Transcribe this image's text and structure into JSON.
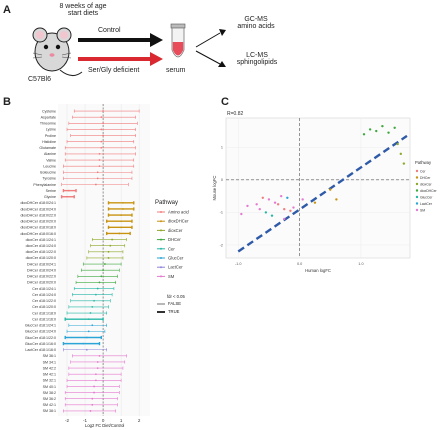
{
  "panelA": {
    "label": "A",
    "age_line1": "8 weeks of age",
    "age_line2": "start diets",
    "strain": "C57Bl6",
    "arm_control": "Control",
    "arm_deficient": "Ser/Gly deficient",
    "sample": "serum",
    "out1_line1": "GC-MS",
    "out1_line2": "amino acids",
    "out2_line1": "LC-MS",
    "out2_line2": "sphingolipids",
    "colors": {
      "control_arrow": "#111111",
      "deficient_arrow": "#d9282f"
    }
  },
  "panelB": {
    "label": "B",
    "xlabel": "Log2 FC Diet/Control",
    "xticks": [
      "-2",
      "-1",
      "0",
      "1",
      "2"
    ],
    "legend_title": "Pathway",
    "pathways": [
      {
        "name": "Amino acid",
        "color": "#f07c7c"
      },
      {
        "name": "dioxDHCer",
        "color": "#c89310"
      },
      {
        "name": "dioxCer",
        "color": "#8ea82a"
      },
      {
        "name": "DHCer",
        "color": "#3fa83f"
      },
      {
        "name": "Cer",
        "color": "#25b7a6"
      },
      {
        "name": "GlucCer",
        "color": "#2aa5d6"
      },
      {
        "name": "LactCer",
        "color": "#8d86d9"
      },
      {
        "name": "SM",
        "color": "#e57ad0"
      }
    ],
    "fdr_title": "fdr < 0.05",
    "fdr_items": [
      "FALSE",
      "TRUE"
    ]
  },
  "chart_data": [
    {
      "type": "scatter",
      "panel": "B",
      "xlabel": "Log2 FC Diet/Control",
      "xlim": [
        -2.5,
        2.6
      ],
      "xticks": [
        -2,
        -1,
        0,
        1,
        2
      ],
      "rows": [
        {
          "label": "Cysteine",
          "pathway": "Amino acid",
          "est": 0.0,
          "lo": -1.6,
          "hi": 2.0,
          "sig": false
        },
        {
          "label": "Aspartate",
          "pathway": "Amino acid",
          "est": -0.1,
          "lo": -1.7,
          "hi": 1.8,
          "sig": false
        },
        {
          "label": "Threonine",
          "pathway": "Amino acid",
          "est": 0.0,
          "lo": -1.9,
          "hi": 1.9,
          "sig": false
        },
        {
          "label": "Lysine",
          "pathway": "Amino acid",
          "est": -0.1,
          "lo": -2.0,
          "hi": 1.8,
          "sig": false
        },
        {
          "label": "Proline",
          "pathway": "Amino acid",
          "est": 0.0,
          "lo": -1.8,
          "hi": 1.8,
          "sig": false
        },
        {
          "label": "Histidine",
          "pathway": "Amino acid",
          "est": -0.1,
          "lo": -2.0,
          "hi": 1.7,
          "sig": false
        },
        {
          "label": "Glutamate",
          "pathway": "Amino acid",
          "est": -0.1,
          "lo": -2.1,
          "hi": 1.8,
          "sig": false
        },
        {
          "label": "Alanine",
          "pathway": "Amino acid",
          "est": -0.2,
          "lo": -2.1,
          "hi": 1.8,
          "sig": false
        },
        {
          "label": "Valine",
          "pathway": "Amino acid",
          "est": -0.2,
          "lo": -2.1,
          "hi": 1.7,
          "sig": false
        },
        {
          "label": "Leucine",
          "pathway": "Amino acid",
          "est": -0.2,
          "lo": -2.2,
          "hi": 1.7,
          "sig": false
        },
        {
          "label": "Isoleucine",
          "pathway": "Amino acid",
          "est": -0.3,
          "lo": -2.2,
          "hi": 1.6,
          "sig": false
        },
        {
          "label": "Tyrosine",
          "pathway": "Amino acid",
          "est": -0.3,
          "lo": -2.2,
          "hi": 1.6,
          "sig": false
        },
        {
          "label": "Phenylalanine",
          "pathway": "Amino acid",
          "est": -0.4,
          "lo": -2.3,
          "hi": 1.4,
          "sig": false
        },
        {
          "label": "Serine",
          "pathway": "Amino acid",
          "est": -1.9,
          "lo": -2.2,
          "hi": -1.5,
          "sig": true
        },
        {
          "label": "Glycine",
          "pathway": "Amino acid",
          "est": -2.0,
          "lo": -2.3,
          "hi": -1.6,
          "sig": true
        },
        {
          "label": "dioxDHCer d18:0/24:1",
          "pathway": "dioxDHCer",
          "est": 1.1,
          "lo": 0.3,
          "hi": 1.7,
          "sig": true
        },
        {
          "label": "dioxDHCer d18:0/24:0",
          "pathway": "dioxDHCer",
          "est": 1.1,
          "lo": 0.3,
          "hi": 1.7,
          "sig": true
        },
        {
          "label": "dioxDHCer d18:0/22:0",
          "pathway": "dioxDHCer",
          "est": 1.0,
          "lo": 0.3,
          "hi": 1.6,
          "sig": true
        },
        {
          "label": "dioxDHCer d18:0/20:0",
          "pathway": "dioxDHCer",
          "est": 1.0,
          "lo": 0.2,
          "hi": 1.6,
          "sig": true
        },
        {
          "label": "dioxDHCer d18:0/18:0",
          "pathway": "dioxDHCer",
          "est": 1.0,
          "lo": 0.3,
          "hi": 1.6,
          "sig": true
        },
        {
          "label": "dioxDHCer d18:0/16:0",
          "pathway": "dioxDHCer",
          "est": 0.9,
          "lo": 0.2,
          "hi": 1.5,
          "sig": true
        },
        {
          "label": "dioxCer d18:1/24:1",
          "pathway": "dioxCer",
          "est": 0.5,
          "lo": -0.6,
          "hi": 1.3,
          "sig": false
        },
        {
          "label": "dioxCer d18:1/24:0",
          "pathway": "dioxCer",
          "est": 0.4,
          "lo": -0.7,
          "hi": 1.2,
          "sig": false
        },
        {
          "label": "dioxCer d18:1/22:0",
          "pathway": "dioxCer",
          "est": 0.3,
          "lo": -0.8,
          "hi": 1.1,
          "sig": false
        },
        {
          "label": "dioxCer d18:1/20:0",
          "pathway": "dioxCer",
          "est": 0.3,
          "lo": -0.9,
          "hi": 1.1,
          "sig": false
        },
        {
          "label": "DHCer d18:0/24:1",
          "pathway": "DHCer",
          "est": 0.1,
          "lo": -1.1,
          "hi": 1.0,
          "sig": false
        },
        {
          "label": "DHCer d18:0/24:0",
          "pathway": "DHCer",
          "est": 0.0,
          "lo": -1.2,
          "hi": 0.9,
          "sig": false
        },
        {
          "label": "DHCer d18:0/22:0",
          "pathway": "DHCer",
          "est": -0.1,
          "lo": -1.4,
          "hi": 0.8,
          "sig": false
        },
        {
          "label": "DHCer d18:0/20:0",
          "pathway": "DHCer",
          "est": -0.2,
          "lo": -1.5,
          "hi": 0.7,
          "sig": false
        },
        {
          "label": "Cer d18:1/24:1",
          "pathway": "Cer",
          "est": -0.3,
          "lo": -1.6,
          "hi": 0.6,
          "sig": false
        },
        {
          "label": "Cer d18:1/24:0",
          "pathway": "Cer",
          "est": -0.4,
          "lo": -1.7,
          "hi": 0.5,
          "sig": false
        },
        {
          "label": "Cer d18:1/22:0",
          "pathway": "Cer",
          "est": -0.5,
          "lo": -1.8,
          "hi": 0.4,
          "sig": false
        },
        {
          "label": "Cer d18:1/20:0",
          "pathway": "Cer",
          "est": -0.6,
          "lo": -1.9,
          "hi": 0.3,
          "sig": false
        },
        {
          "label": "Cer d18:1/18:0",
          "pathway": "Cer",
          "est": -0.7,
          "lo": -2.0,
          "hi": 0.2,
          "sig": false
        },
        {
          "label": "Cer d18:1/16:0",
          "pathway": "Cer",
          "est": -0.8,
          "lo": -2.1,
          "hi": 0.0,
          "sig": true
        },
        {
          "label": "GlucCer d18:1/24:1",
          "pathway": "GlucCer",
          "est": -0.6,
          "lo": -1.9,
          "hi": 0.2,
          "sig": false
        },
        {
          "label": "GlucCer d18:1/24:0",
          "pathway": "GlucCer",
          "est": -0.8,
          "lo": -2.0,
          "hi": 0.1,
          "sig": false
        },
        {
          "label": "GlucCer d18:1/22:0",
          "pathway": "GlucCer",
          "est": -0.9,
          "lo": -2.1,
          "hi": -0.1,
          "sig": true
        },
        {
          "label": "GlucCer d18:1/16:0",
          "pathway": "GlucCer",
          "est": -1.1,
          "lo": -2.2,
          "hi": -0.2,
          "sig": true
        },
        {
          "label": "LactCer d18:1/16:0",
          "pathway": "LactCer",
          "est": -0.9,
          "lo": -2.2,
          "hi": 0.2,
          "sig": false
        },
        {
          "label": "SM 36:1",
          "pathway": "SM",
          "est": -0.2,
          "lo": -1.7,
          "hi": 1.3,
          "sig": false
        },
        {
          "label": "SM 34:1",
          "pathway": "SM",
          "est": -0.3,
          "lo": -1.8,
          "hi": 1.2,
          "sig": false
        },
        {
          "label": "SM 42:2",
          "pathway": "SM",
          "est": -0.3,
          "lo": -1.9,
          "hi": 1.1,
          "sig": false
        },
        {
          "label": "SM 42:1",
          "pathway": "SM",
          "est": -0.4,
          "lo": -1.9,
          "hi": 1.0,
          "sig": false
        },
        {
          "label": "SM 32:1",
          "pathway": "SM",
          "est": -0.4,
          "lo": -2.0,
          "hi": 1.0,
          "sig": false
        },
        {
          "label": "SM 40:1",
          "pathway": "SM",
          "est": -0.5,
          "lo": -2.0,
          "hi": 0.9,
          "sig": false
        },
        {
          "label": "SM 38:2",
          "pathway": "SM",
          "est": -0.5,
          "lo": -2.1,
          "hi": 0.9,
          "sig": false
        },
        {
          "label": "SM 36:2",
          "pathway": "SM",
          "est": -0.6,
          "lo": -2.1,
          "hi": 0.8,
          "sig": false
        },
        {
          "label": "SM 42:1",
          "pathway": "SM",
          "est": -0.6,
          "lo": -2.1,
          "hi": 0.8,
          "sig": false
        },
        {
          "label": "SM 38:1",
          "pathway": "SM",
          "est": -0.7,
          "lo": -2.2,
          "hi": 0.7,
          "sig": false
        }
      ]
    },
    {
      "type": "scatter",
      "panel": "C",
      "annotation": "R=0.82",
      "xlabel": "Human logFC",
      "ylabel": "Mouse logFC",
      "xlim": [
        -1.2,
        1.8
      ],
      "ylim": [
        -2.4,
        1.9
      ],
      "xticks": [
        -1.0,
        0.0,
        1.0
      ],
      "yticks": [
        -2,
        -1,
        0,
        1
      ],
      "legend_title": "Pathway",
      "legend": [
        {
          "name": "Cer",
          "color": "#f07c7c"
        },
        {
          "name": "DHCer",
          "color": "#c89310"
        },
        {
          "name": "dioxCer",
          "color": "#8ea82a"
        },
        {
          "name": "dioxDHCer",
          "color": "#3fa83f"
        },
        {
          "name": "GlucCer",
          "color": "#25b7a6"
        },
        {
          "name": "LactCer",
          "color": "#2aa5d6"
        },
        {
          "name": "SM",
          "color": "#e57ad0"
        }
      ],
      "points": [
        {
          "x": 1.05,
          "y": 1.4,
          "pathway": "dioxDHCer"
        },
        {
          "x": 1.15,
          "y": 1.55,
          "pathway": "dioxDHCer"
        },
        {
          "x": 1.25,
          "y": 1.5,
          "pathway": "dioxDHCer"
        },
        {
          "x": 1.35,
          "y": 1.65,
          "pathway": "dioxDHCer"
        },
        {
          "x": 1.45,
          "y": 1.45,
          "pathway": "dioxDHCer"
        },
        {
          "x": 1.55,
          "y": 1.6,
          "pathway": "dioxDHCer"
        },
        {
          "x": 1.6,
          "y": 1.1,
          "pathway": "dioxCer"
        },
        {
          "x": 1.65,
          "y": 0.8,
          "pathway": "dioxCer"
        },
        {
          "x": 1.7,
          "y": 0.5,
          "pathway": "dioxCer"
        },
        {
          "x": 0.5,
          "y": -0.3,
          "pathway": "DHCer"
        },
        {
          "x": 0.6,
          "y": -0.6,
          "pathway": "DHCer"
        },
        {
          "x": 0.25,
          "y": -0.7,
          "pathway": "DHCer"
        },
        {
          "x": -0.25,
          "y": -0.9,
          "pathway": "Cer"
        },
        {
          "x": -0.35,
          "y": -0.75,
          "pathway": "Cer"
        },
        {
          "x": -0.15,
          "y": -0.95,
          "pathway": "Cer"
        },
        {
          "x": -0.6,
          "y": -0.55,
          "pathway": "Cer"
        },
        {
          "x": -0.45,
          "y": -1.1,
          "pathway": "GlucCer"
        },
        {
          "x": -0.55,
          "y": -1.0,
          "pathway": "GlucCer"
        },
        {
          "x": -0.2,
          "y": -0.55,
          "pathway": "LactCer"
        },
        {
          "x": -0.7,
          "y": -0.75,
          "pathway": "SM"
        },
        {
          "x": -0.65,
          "y": -0.9,
          "pathway": "SM"
        },
        {
          "x": -0.5,
          "y": -0.6,
          "pathway": "SM"
        },
        {
          "x": -0.4,
          "y": -0.7,
          "pathway": "SM"
        },
        {
          "x": -0.3,
          "y": -0.5,
          "pathway": "SM"
        },
        {
          "x": -0.1,
          "y": -0.85,
          "pathway": "SM"
        },
        {
          "x": -0.85,
          "y": -0.8,
          "pathway": "SM"
        },
        {
          "x": 0.05,
          "y": -0.6,
          "pathway": "SM"
        },
        {
          "x": -0.95,
          "y": -1.05,
          "pathway": "SM"
        },
        {
          "x": -0.25,
          "y": -1.2,
          "pathway": "SM"
        }
      ],
      "trend": {
        "x1": -1.0,
        "y1": -2.2,
        "x2": 1.75,
        "y2": 1.35
      }
    }
  ]
}
